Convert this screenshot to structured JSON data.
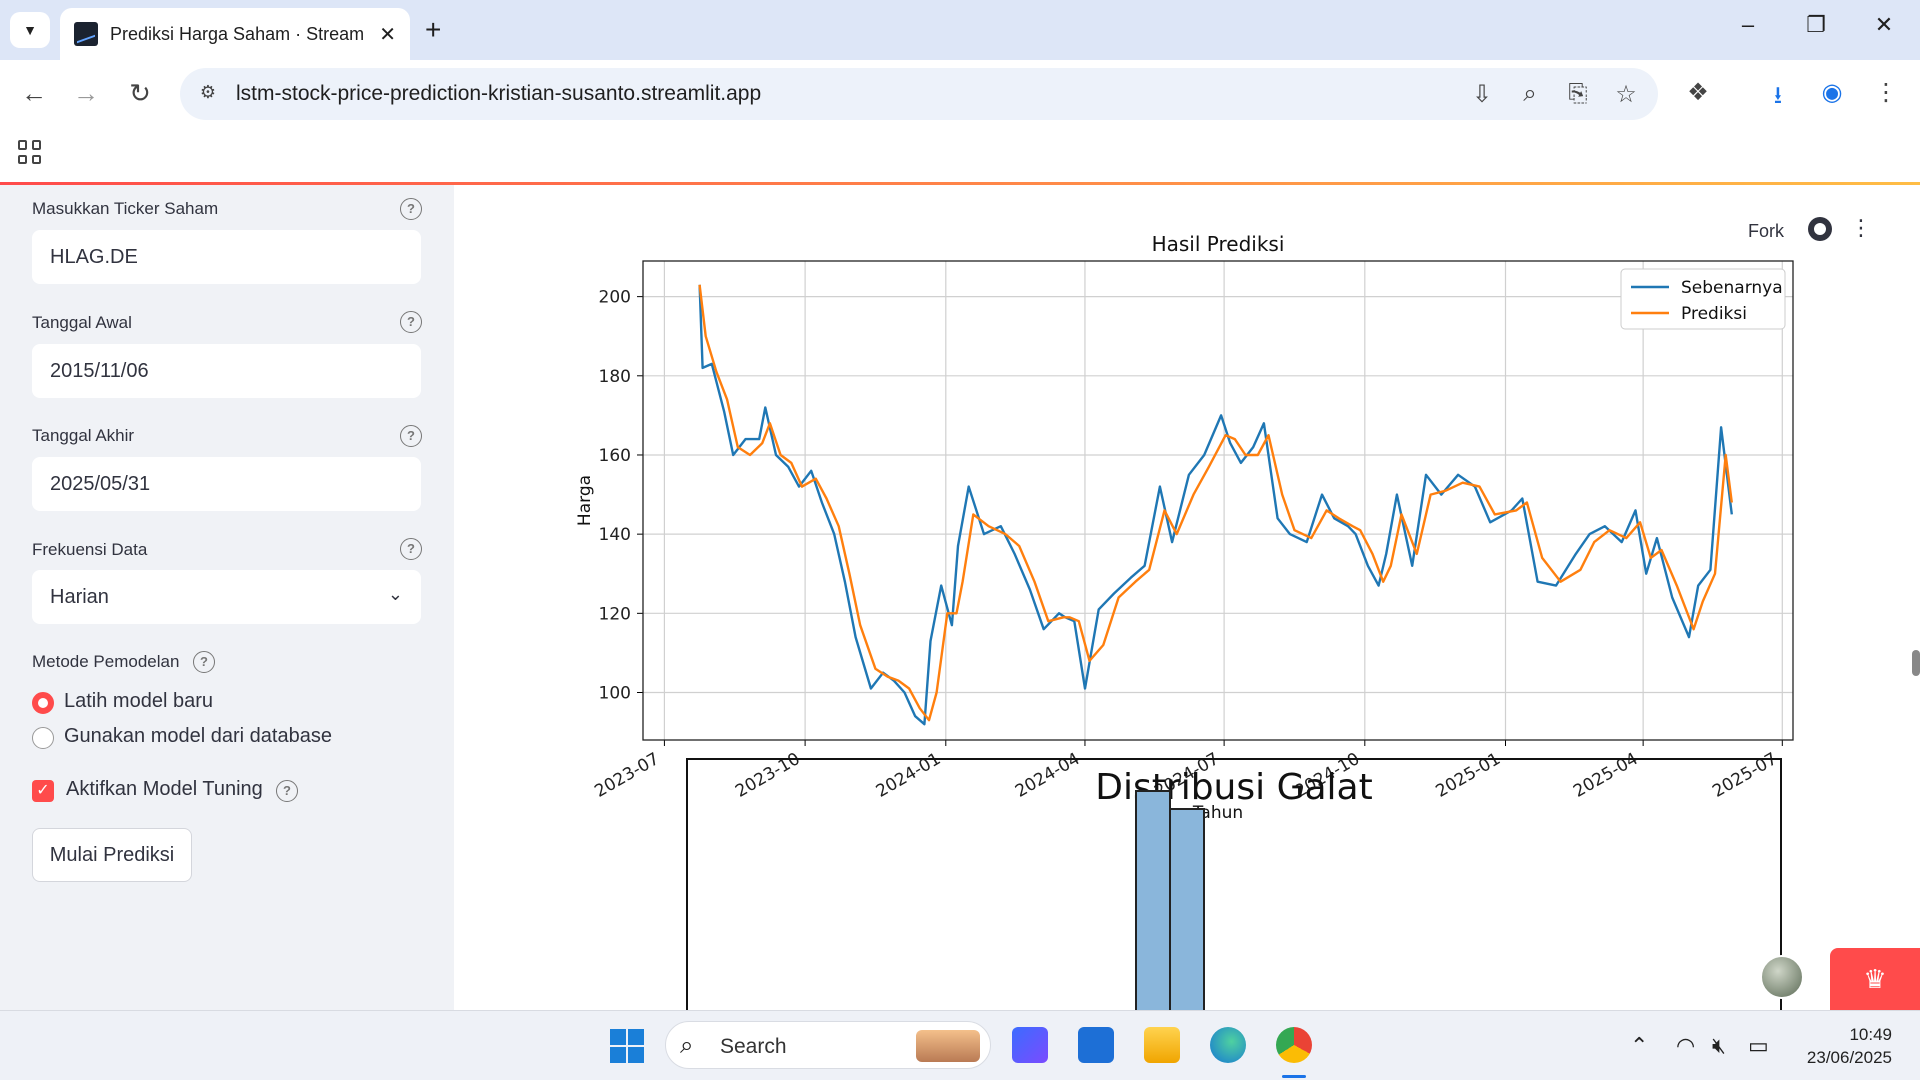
{
  "browser": {
    "tab_title": "Prediksi Harga Saham · Streamlit",
    "url": "lstm-stock-price-prediction-kristian-susanto.streamlit.app"
  },
  "sidebar": {
    "ticker_label": "Masukkan Ticker Saham",
    "ticker_value": "HLAG.DE",
    "start_label": "Tanggal Awal",
    "start_value": "2015/11/06",
    "end_label": "Tanggal Akhir",
    "end_value": "2025/05/31",
    "freq_label": "Frekuensi Data",
    "freq_value": "Harian",
    "method_label": "Metode Pemodelan",
    "radio_options": [
      "Latih model baru",
      "Gunakan model dari database"
    ],
    "radio_selected": 0,
    "tuning_label": "Aktifkan Model Tuning",
    "tuning_checked": true,
    "start_button": "Mulai Prediksi"
  },
  "header": {
    "fork_label": "Fork"
  },
  "chart_data": [
    {
      "type": "line",
      "title": "Hasil Prediksi",
      "xlabel": "Tahun",
      "ylabel": "Harga",
      "x_ticks": [
        "2023-07",
        "2023-10",
        "2024-01",
        "2024-04",
        "2024-07",
        "2024-10",
        "2025-01",
        "2025-04",
        "2025-07"
      ],
      "y_ticks": [
        100,
        120,
        140,
        160,
        180,
        200
      ],
      "ylim": [
        88,
        209
      ],
      "xlim": [
        "2023-06-17",
        "2025-07-08"
      ],
      "grid": true,
      "legend_position": "top-right",
      "series": [
        {
          "name": "Sebenarnya",
          "color": "#1f77b4",
          "x": [
            "2023-07-24",
            "2023-07-26",
            "2023-08-01",
            "2023-08-09",
            "2023-08-15",
            "2023-08-23",
            "2023-09-01",
            "2023-09-05",
            "2023-09-12",
            "2023-09-20",
            "2023-09-27",
            "2023-10-05",
            "2023-10-12",
            "2023-10-20",
            "2023-10-27",
            "2023-11-03",
            "2023-11-13",
            "2023-11-21",
            "2023-11-28",
            "2023-12-05",
            "2023-12-12",
            "2023-12-18",
            "2023-12-22",
            "2023-12-29",
            "2024-01-05",
            "2024-01-09",
            "2024-01-16",
            "2024-01-26",
            "2024-02-06",
            "2024-02-15",
            "2024-02-25",
            "2024-03-05",
            "2024-03-15",
            "2024-03-19",
            "2024-03-25",
            "2024-04-01",
            "2024-04-10",
            "2024-04-20",
            "2024-05-01",
            "2024-05-10",
            "2024-05-20",
            "2024-05-28",
            "2024-06-08",
            "2024-06-18",
            "2024-06-29",
            "2024-07-05",
            "2024-07-12",
            "2024-07-20",
            "2024-07-27",
            "2024-08-05",
            "2024-08-13",
            "2024-08-24",
            "2024-09-03",
            "2024-09-11",
            "2024-09-20",
            "2024-09-25",
            "2024-10-03",
            "2024-10-10",
            "2024-10-15",
            "2024-10-22",
            "2024-11-01",
            "2024-11-10",
            "2024-11-20",
            "2024-12-01",
            "2024-12-12",
            "2024-12-22",
            "2025-01-05",
            "2025-01-12",
            "2025-01-22",
            "2025-02-03",
            "2025-02-16",
            "2025-02-25",
            "2025-03-07",
            "2025-03-18",
            "2025-03-27",
            "2025-04-03",
            "2025-04-10",
            "2025-04-20",
            "2025-05-01",
            "2025-05-07",
            "2025-05-15",
            "2025-05-22",
            "2025-05-29"
          ],
          "y": [
            203,
            182,
            183,
            171,
            160,
            164,
            164,
            172,
            160,
            157,
            152,
            156,
            148,
            140,
            128,
            114,
            101,
            105,
            103,
            100,
            94,
            92,
            113,
            127,
            117,
            137,
            152,
            140,
            142,
            135,
            126,
            116,
            120,
            119,
            118,
            101,
            121,
            125,
            129,
            132,
            152,
            138,
            155,
            160,
            170,
            163,
            158,
            162,
            168,
            144,
            140,
            138,
            150,
            144,
            142,
            140,
            132,
            127,
            135,
            150,
            132,
            155,
            150,
            155,
            152,
            143,
            146,
            149,
            128,
            127,
            135,
            140,
            142,
            138,
            146,
            130,
            139,
            124,
            114,
            127,
            131,
            167,
            145
          ]
        },
        {
          "name": "Prediksi",
          "color": "#ff7f0e",
          "x": [
            "2023-07-24",
            "2023-07-28",
            "2023-08-04",
            "2023-08-11",
            "2023-08-18",
            "2023-08-26",
            "2023-09-03",
            "2023-09-08",
            "2023-09-15",
            "2023-09-22",
            "2023-09-29",
            "2023-10-08",
            "2023-10-15",
            "2023-10-23",
            "2023-10-30",
            "2023-11-06",
            "2023-11-16",
            "2023-11-24",
            "2023-12-01",
            "2023-12-08",
            "2023-12-15",
            "2023-12-21",
            "2023-12-26",
            "2024-01-02",
            "2024-01-08",
            "2024-01-12",
            "2024-01-19",
            "2024-01-29",
            "2024-02-09",
            "2024-02-18",
            "2024-02-28",
            "2024-03-08",
            "2024-03-18",
            "2024-03-22",
            "2024-03-28",
            "2024-04-04",
            "2024-04-13",
            "2024-04-23",
            "2024-05-04",
            "2024-05-13",
            "2024-05-23",
            "2024-05-31",
            "2024-06-11",
            "2024-06-21",
            "2024-07-02",
            "2024-07-08",
            "2024-07-15",
            "2024-07-23",
            "2024-07-30",
            "2024-08-08",
            "2024-08-16",
            "2024-08-27",
            "2024-09-06",
            "2024-09-14",
            "2024-09-23",
            "2024-09-28",
            "2024-10-06",
            "2024-10-13",
            "2024-10-18",
            "2024-10-25",
            "2024-11-04",
            "2024-11-13",
            "2024-11-23",
            "2024-12-04",
            "2024-12-15",
            "2024-12-25",
            "2025-01-08",
            "2025-01-15",
            "2025-01-25",
            "2025-02-06",
            "2025-02-19",
            "2025-02-28",
            "2025-03-10",
            "2025-03-21",
            "2025-03-30",
            "2025-04-06",
            "2025-04-13",
            "2025-04-23",
            "2025-05-04",
            "2025-05-10",
            "2025-05-18",
            "2025-05-25",
            "2025-05-29"
          ],
          "y": [
            203,
            190,
            181,
            174,
            162,
            160,
            163,
            168,
            160,
            158,
            152,
            154,
            149,
            142,
            130,
            117,
            106,
            104,
            103,
            101,
            96,
            93,
            100,
            120,
            120,
            128,
            145,
            142,
            140,
            137,
            128,
            118,
            119,
            119,
            118,
            108,
            112,
            124,
            128,
            131,
            146,
            140,
            150,
            157,
            165,
            164,
            160,
            160,
            165,
            150,
            141,
            139,
            146,
            144,
            142,
            141,
            135,
            128,
            132,
            145,
            135,
            150,
            151,
            153,
            152,
            145,
            146,
            148,
            134,
            128,
            131,
            138,
            141,
            139,
            143,
            134,
            136,
            127,
            116,
            123,
            130,
            160,
            148
          ]
        }
      ]
    },
    {
      "type": "bar",
      "title": "Distribusi Galat"
    }
  ],
  "taskbar": {
    "search_placeholder": "Search",
    "time": "10:49",
    "date": "23/06/2025"
  }
}
